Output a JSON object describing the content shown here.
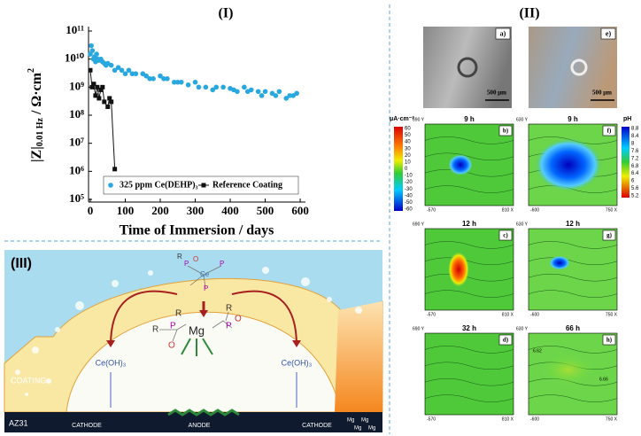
{
  "chart_data": {
    "type": "scatter",
    "panel_label": "(I)",
    "x_label": "Time of Immersion / days",
    "y_label": {
      "main": "|Z|",
      "sub": "0.01 Hz",
      "unit": " / Ω·cm",
      "sup": "2"
    },
    "xlim": [
      -5,
      615
    ],
    "xticks": [
      0,
      100,
      200,
      300,
      400,
      500,
      600
    ],
    "ylim": [
      100000,
      100000000000
    ],
    "log_scale": true,
    "yticks": [
      {
        "value": 100000,
        "label": "10⁵"
      },
      {
        "value": 1000000,
        "label": "10⁶"
      },
      {
        "value": 10000000,
        "label": "10⁷"
      },
      {
        "value": 100000000,
        "label": "10⁸"
      },
      {
        "value": 1000000000,
        "label": "10⁹"
      },
      {
        "value": 10000000000,
        "label": "10¹⁰"
      },
      {
        "value": 100000000000,
        "label": "10¹¹"
      }
    ],
    "grid": false,
    "legend": "bottom",
    "series": [
      {
        "name": "325 ppm Ce(DEHP)₃",
        "color": "#29a8e0",
        "marker": "circle",
        "x": [
          0,
          3,
          6,
          9,
          12,
          15,
          18,
          21,
          25,
          30,
          35,
          40,
          45,
          50,
          60,
          70,
          80,
          90,
          100,
          110,
          120,
          130,
          150,
          160,
          170,
          180,
          200,
          210,
          220,
          240,
          250,
          260,
          280,
          300,
          310,
          330,
          350,
          360,
          380,
          400,
          410,
          420,
          440,
          450,
          460,
          480,
          490,
          500,
          520,
          530,
          540,
          560,
          570,
          580,
          590
        ],
        "values": [
          15000000000,
          30000000000,
          20000000000,
          10000000000,
          12000000000,
          8000000000,
          15000000000,
          10000000000,
          9000000000,
          10000000000,
          8000000000,
          7000000000,
          6000000000,
          7000000000,
          6000000000,
          4000000000,
          5000000000,
          4000000000,
          3000000000,
          4000000000,
          3000000000,
          3000000000,
          3000000000,
          2500000000,
          2000000000,
          2000000000,
          2500000000,
          2000000000,
          2000000000,
          1500000000,
          1500000000,
          1500000000,
          1200000000,
          1500000000,
          1000000000,
          1000000000,
          800000000,
          1000000000,
          1000000000,
          900000000,
          800000000,
          700000000,
          1000000000,
          700000000,
          800000000,
          700000000,
          500000000,
          700000000,
          600000000,
          500000000,
          700000000,
          400000000,
          500000000,
          500000000,
          600000000
        ]
      },
      {
        "name": "Reference Coating",
        "color": "#111111",
        "marker": "square",
        "x": [
          0,
          5,
          10,
          15,
          20,
          25,
          30,
          35,
          40,
          50,
          55,
          60,
          70
        ],
        "values": [
          4000000000,
          1000000000,
          1300000000,
          500000000,
          1000000000,
          400000000,
          800000000,
          1000000000,
          300000000,
          200000000,
          400000000,
          300000000,
          1200000
        ]
      }
    ]
  },
  "panel2": {
    "label": "(II)",
    "images": [
      {
        "label": "a)",
        "scale": "500 μm"
      },
      {
        "label": "e)",
        "scale": "500 μm"
      }
    ],
    "colorbar_left": {
      "unit": "μA·cm⁻²",
      "ticks": [
        "60",
        "50",
        "40",
        "30",
        "20",
        "10",
        "0",
        "-10",
        "-20",
        "-30",
        "-40",
        "-50",
        "-60"
      ]
    },
    "colorbar_right": {
      "unit": "pH",
      "ticks": [
        "8.8",
        "8.4",
        "8",
        "7.6",
        "7.2",
        "6.8",
        "6.4",
        "6",
        "5.6",
        "5.2"
      ]
    },
    "maps": [
      {
        "label": "b)",
        "title": "9 h",
        "y_top": "690 Y",
        "x_left": "-570",
        "x_right": "810 X"
      },
      {
        "label": "f)",
        "title": "9 h",
        "y_top": "630 Y",
        "x_left": "-600",
        "x_right": "750 X"
      },
      {
        "label": "c)",
        "title": "12 h",
        "y_top": "690 Y",
        "x_left": "-570",
        "x_right": "810 X"
      },
      {
        "label": "g)",
        "title": "12 h",
        "y_top": "630 Y",
        "x_left": "-600",
        "x_right": "750 X"
      },
      {
        "label": "d)",
        "title": "32 h",
        "y_top": "690 Y",
        "x_left": "-570",
        "x_right": "810 X"
      },
      {
        "label": "h)",
        "title": "66 h",
        "y_top": "630 Y",
        "x_left": "-600",
        "x_right": "750 X"
      }
    ],
    "contour_labels": [
      "6.62",
      "6.66"
    ]
  },
  "panel3": {
    "label": "(III)",
    "coating": "COATING",
    "substrate": "AZ31",
    "cathode": "CATHODE",
    "anode": "ANODE",
    "product": "Ce(OH)₃",
    "metal": "Mg",
    "molecule": {
      "center": "Ce",
      "ligand": "P",
      "oxygen": "O",
      "alkyl": "R"
    }
  }
}
